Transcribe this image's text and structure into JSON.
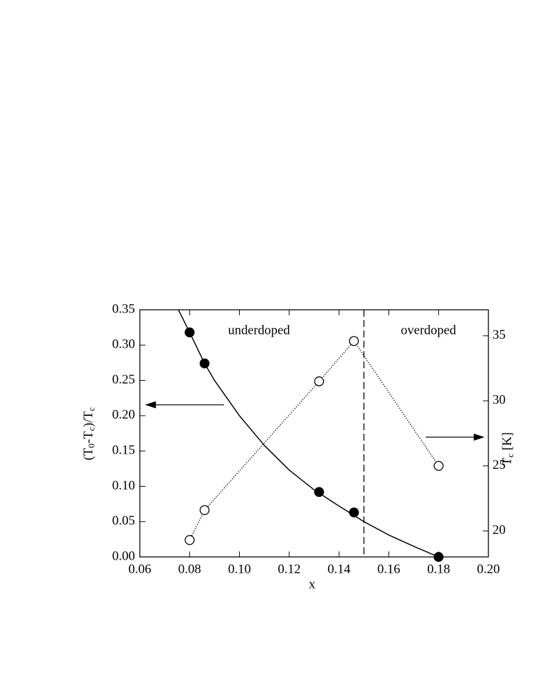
{
  "chart_data": {
    "type": "line",
    "xlabel": "x",
    "ylabel_parts": [
      "(T",
      "0",
      "-T",
      "c",
      ")/T",
      "c"
    ],
    "y2label_parts": [
      "T",
      "c",
      " [K]"
    ],
    "annotations": [
      "underdoped",
      "overdoped"
    ],
    "vline": 0.15,
    "xlim": [
      0.06,
      0.2
    ],
    "xticks": [
      0.06,
      0.08,
      {
        "value": 0.1,
        "label": "0.10"
      },
      0.12,
      0.14,
      0.16,
      0.18,
      {
        "value": 0.2,
        "label": "0.20"
      }
    ],
    "ylim": [
      0,
      0.35
    ],
    "yticks": [
      {
        "value": 0,
        "label": "0.00"
      },
      0.05,
      {
        "value": 0.1,
        "label": "0.10"
      },
      0.15,
      {
        "value": 0.2,
        "label": "0.20"
      },
      0.25,
      {
        "value": 0.3,
        "label": "0.30"
      },
      0.35
    ],
    "y2lim": [
      18,
      37
    ],
    "y2ticks": [
      20,
      25,
      30,
      35
    ],
    "series": [
      {
        "color": "#000000",
        "marker": "filled",
        "line": "none",
        "x": [
          0.08,
          0.086,
          0.132,
          0.146,
          0.18
        ],
        "values": [
          0.318,
          0.274,
          0.092,
          0.063,
          0
        ]
      },
      {
        "color": "#000000",
        "marker": "none",
        "line": "solid",
        "x": [
          0.0755,
          0.08,
          0.086,
          0.09,
          0.1,
          0.11,
          0.12,
          0.13,
          0.14,
          0.15,
          0.16,
          0.17,
          0.18
        ],
        "values": [
          0.35,
          0.318,
          0.274,
          0.25,
          0.2,
          0.158,
          0.123,
          0.095,
          0.072,
          0.05,
          0.031,
          0.015,
          0
        ]
      },
      {
        "color": "#000000",
        "marker": "open",
        "line": "dotted",
        "axis": "y2",
        "x": [
          0.08,
          0.086,
          0.132,
          0.146,
          0.18
        ],
        "values": [
          19.3,
          21.6,
          31.5,
          34.6,
          25
        ]
      }
    ]
  }
}
